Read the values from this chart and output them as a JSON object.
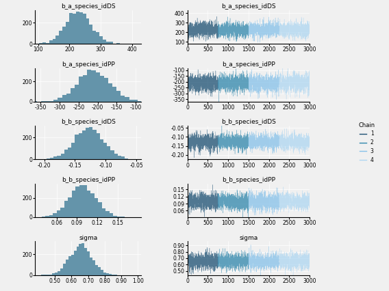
{
  "params": [
    {
      "name": "b_a_species_idDS",
      "hist_mean": 228,
      "hist_std": 42,
      "hist_xlim": [
        90,
        430
      ],
      "hist_xticks": [
        100,
        200,
        300,
        400
      ],
      "trace_ylim": [
        80,
        430
      ],
      "trace_yticks": [
        100,
        200,
        300,
        400
      ]
    },
    {
      "name": "b_a_species_idPP",
      "hist_mean": -210,
      "hist_std": 42,
      "hist_xlim": [
        -365,
        -85
      ],
      "hist_xticks": [
        -350,
        -300,
        -250,
        -200,
        -150,
        -100
      ],
      "trace_ylim": [
        -370,
        -80
      ],
      "trace_yticks": [
        -350,
        -300,
        -250,
        -200,
        -150,
        -100
      ]
    },
    {
      "name": "b_b_species_idDS",
      "hist_mean": -0.128,
      "hist_std": 0.024,
      "hist_xlim": [
        -0.215,
        -0.042
      ],
      "hist_xticks": [
        -0.2,
        -0.15,
        -0.1,
        -0.05
      ],
      "trace_ylim": [
        -0.225,
        -0.038
      ],
      "trace_yticks": [
        -0.2,
        -0.15,
        -0.1,
        -0.05
      ]
    },
    {
      "name": "b_b_species_idPP",
      "hist_mean": 0.098,
      "hist_std": 0.02,
      "hist_xlim": [
        0.028,
        0.185
      ],
      "hist_xticks": [
        0.06,
        0.09,
        0.12,
        0.15
      ],
      "trace_ylim": [
        0.032,
        0.175
      ],
      "trace_yticks": [
        0.06,
        0.09,
        0.12,
        0.15
      ]
    },
    {
      "name": "sigma",
      "hist_mean": 0.655,
      "hist_std": 0.068,
      "hist_xlim": [
        0.38,
        1.02
      ],
      "hist_xticks": [
        0.5,
        0.6,
        0.7,
        0.8,
        0.9,
        1.0
      ],
      "trace_ylim": [
        0.44,
        0.96
      ],
      "trace_yticks": [
        0.5,
        0.6,
        0.7,
        0.8,
        0.9
      ]
    }
  ],
  "n_chains": 4,
  "n_samples": 750,
  "total_samples": 3000,
  "bar_color": "#6494aa",
  "chain_colors": [
    "#1b4f72",
    "#2e86ab",
    "#85c1e9",
    "#aed6f1"
  ],
  "background_color": "#f0f0f0",
  "title_fontsize": 6.5,
  "tick_fontsize": 5.5,
  "legend_title": "Chain",
  "legend_entries": [
    "1",
    "2",
    "3",
    "4"
  ],
  "seed": 42
}
